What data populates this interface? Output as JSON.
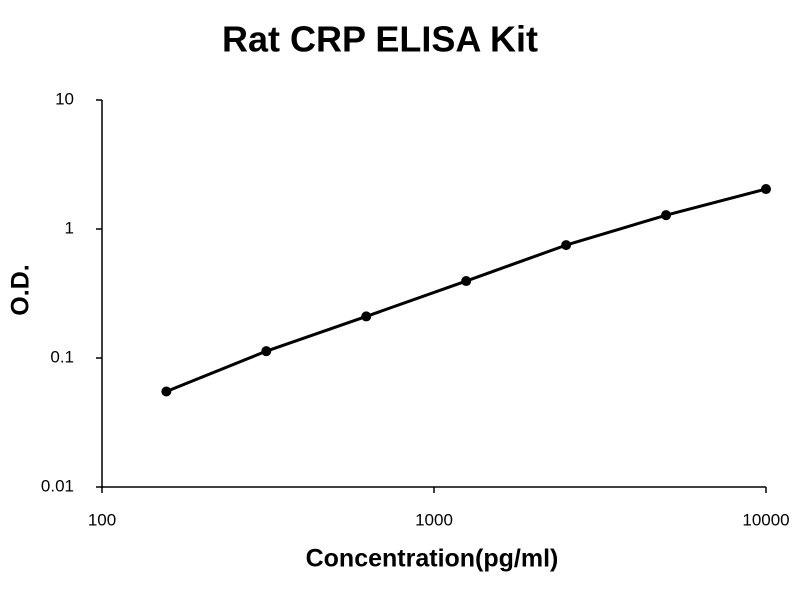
{
  "chart_data": {
    "type": "line",
    "title": "Rat CRP ELISA Kit",
    "xlabel": "Concentration(pg/ml)",
    "ylabel": "O.D.",
    "x": [
      156.25,
      312.5,
      625,
      1250,
      2500,
      5000,
      10000
    ],
    "values": [
      0.055,
      0.113,
      0.21,
      0.395,
      0.75,
      1.28,
      2.04
    ],
    "color": "#000000",
    "markers": true,
    "xscale": "log",
    "yscale": "log",
    "xlim": [
      100,
      10000
    ],
    "ylim": [
      0.01,
      10
    ],
    "xticks": [
      100,
      1000,
      10000
    ],
    "yticks": [
      0.01,
      0.1,
      1,
      10
    ],
    "grid": false
  }
}
